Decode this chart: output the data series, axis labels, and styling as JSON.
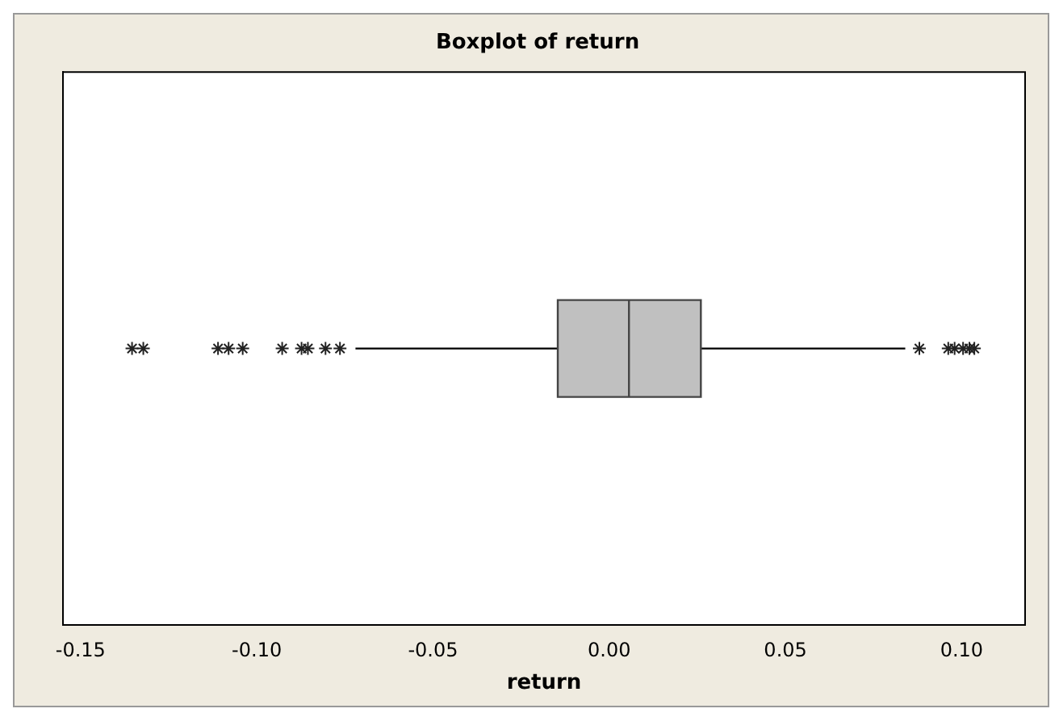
{
  "chart_data": {
    "type": "box",
    "title": "Boxplot of return",
    "xlabel": "return",
    "orientation": "horizontal",
    "categories": [
      null
    ],
    "boxes": [
      {
        "low": -0.072,
        "q1": -0.0146,
        "median": 0.0056,
        "q3": 0.026,
        "high": 0.084,
        "outliers": [
          -0.1354,
          -0.1322,
          -0.111,
          -0.108,
          -0.104,
          -0.0928,
          -0.0873,
          -0.0855,
          -0.0805,
          -0.0764,
          0.088,
          0.0962,
          0.098,
          0.1004,
          0.1022,
          0.1036
        ]
      }
    ],
    "color": "#c0c0c0",
    "marker": "star",
    "xlim": [
      -0.155,
      0.118
    ],
    "xticks": [
      {
        "value": -0.15,
        "label": "-0.15"
      },
      {
        "value": -0.1,
        "label": "-0.10"
      },
      {
        "value": -0.05,
        "label": "-0.05"
      },
      {
        "value": 0,
        "label": "0.00"
      },
      {
        "value": 0.05,
        "label": "0.05"
      },
      {
        "value": 0.1,
        "label": "0.10"
      }
    ],
    "tick_labels": "x",
    "grid": false,
    "legend": false
  }
}
